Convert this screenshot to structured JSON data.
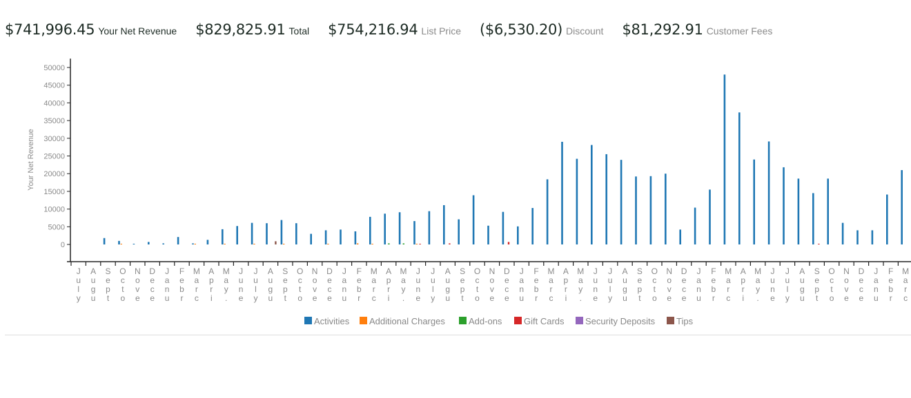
{
  "summary": [
    {
      "value": "$741,996.45",
      "label": "Your Net Revenue"
    },
    {
      "value": "$829,825.91",
      "label": "Total"
    },
    {
      "value": "$754,216.94",
      "label": "List Price"
    },
    {
      "value": "($6,530.20)",
      "label": "Discount"
    },
    {
      "value": "$81,292.91",
      "label": "Customer Fees"
    }
  ],
  "chart_data": {
    "type": "bar",
    "title": "",
    "xlabel": "",
    "ylabel": "Your Net Revenue",
    "ylim": [
      -5000,
      52500
    ],
    "yticks": [
      0,
      5000,
      10000,
      15000,
      20000,
      25000,
      30000,
      35000,
      40000,
      45000,
      50000
    ],
    "grid": false,
    "legend_position": "bottom-center",
    "categories": [
      "July",
      "Augu",
      "Sept",
      "Octo",
      "Nove",
      "Dece",
      "Janu",
      "Febr",
      "Marc",
      "Apri",
      "May.",
      "June",
      "July",
      "Augu",
      "Sept",
      "Octo",
      "Nove",
      "Dece",
      "Janu",
      "Febr",
      "Marc",
      "Apri",
      "May.",
      "June",
      "July",
      "Augu",
      "Sept",
      "Octo",
      "Nove",
      "Dece",
      "Janu",
      "Febr",
      "Marc",
      "Apri",
      "May.",
      "June",
      "July",
      "Augu",
      "Sept",
      "Octo",
      "Nove",
      "Dece",
      "Janu",
      "Febr",
      "Marc",
      "Apri",
      "May.",
      "June",
      "July",
      "Augu",
      "Sept",
      "Octo",
      "Nove",
      "Dece",
      "Janu",
      "Febr",
      "Marc"
    ],
    "series": [
      {
        "name": "Activities",
        "color": "#1f77b4",
        "values": [
          0,
          0,
          1800,
          1000,
          200,
          700,
          300,
          2100,
          300,
          1300,
          4300,
          5200,
          6100,
          6000,
          6900,
          6000,
          3000,
          4000,
          4200,
          3700,
          7800,
          8700,
          9100,
          6600,
          9400,
          11100,
          7100,
          13900,
          5300,
          9200,
          5100,
          10300,
          18400,
          29000,
          24200,
          28100,
          25500,
          23900,
          19200,
          19300,
          20000,
          4200,
          10400,
          15500,
          48000,
          37300,
          24000,
          29100,
          21800,
          18600,
          14500,
          18600,
          6100,
          4000,
          4000,
          14100,
          21000
        ]
      },
      {
        "name": "Additional Charges",
        "color": "#ff7f0e",
        "values": [
          0,
          0,
          0,
          200,
          0,
          0,
          0,
          0,
          200,
          0,
          200,
          0,
          200,
          0,
          200,
          0,
          0,
          200,
          0,
          300,
          200,
          0,
          0,
          200,
          0,
          0,
          0,
          0,
          0,
          0,
          0,
          0,
          0,
          0,
          0,
          0,
          0,
          0,
          0,
          0,
          0,
          0,
          0,
          0,
          0,
          0,
          0,
          0,
          0,
          0,
          0,
          0,
          0,
          0,
          0,
          0,
          0
        ]
      },
      {
        "name": "Add-ons",
        "color": "#2ca02c",
        "values": [
          0,
          0,
          0,
          0,
          0,
          0,
          0,
          0,
          0,
          0,
          0,
          0,
          0,
          0,
          0,
          0,
          0,
          0,
          0,
          0,
          0,
          300,
          300,
          0,
          0,
          0,
          0,
          0,
          0,
          0,
          0,
          0,
          0,
          0,
          0,
          0,
          0,
          0,
          0,
          0,
          0,
          0,
          0,
          0,
          0,
          0,
          0,
          0,
          0,
          0,
          0,
          0,
          0,
          0,
          0,
          0,
          0
        ]
      },
      {
        "name": "Gift Cards",
        "color": "#d62728",
        "values": [
          0,
          0,
          0,
          0,
          0,
          0,
          0,
          0,
          0,
          0,
          0,
          0,
          0,
          0,
          0,
          0,
          0,
          0,
          0,
          0,
          0,
          0,
          0,
          200,
          0,
          300,
          0,
          0,
          0,
          700,
          0,
          0,
          0,
          0,
          0,
          0,
          0,
          0,
          0,
          0,
          0,
          0,
          0,
          0,
          0,
          0,
          0,
          0,
          0,
          0,
          200,
          0,
          0,
          0,
          0,
          0,
          0
        ]
      },
      {
        "name": "Security Deposits",
        "color": "#9467bd",
        "values": [
          0,
          0,
          0,
          0,
          0,
          0,
          0,
          0,
          0,
          0,
          0,
          0,
          0,
          0,
          0,
          0,
          0,
          0,
          0,
          0,
          0,
          0,
          0,
          0,
          0,
          0,
          0,
          0,
          0,
          0,
          0,
          0,
          0,
          0,
          0,
          0,
          0,
          0,
          0,
          0,
          0,
          0,
          0,
          0,
          0,
          0,
          0,
          0,
          0,
          0,
          0,
          0,
          0,
          0,
          0,
          0,
          0
        ]
      },
      {
        "name": "Tips",
        "color": "#8c564b",
        "values": [
          0,
          0,
          0,
          0,
          0,
          0,
          0,
          0,
          0,
          0,
          0,
          0,
          0,
          900,
          0,
          0,
          0,
          0,
          0,
          0,
          0,
          0,
          0,
          0,
          0,
          0,
          0,
          0,
          0,
          0,
          0,
          0,
          0,
          0,
          0,
          0,
          0,
          0,
          0,
          0,
          0,
          0,
          0,
          0,
          0,
          0,
          0,
          0,
          0,
          0,
          0,
          0,
          0,
          0,
          0,
          0,
          0
        ]
      }
    ]
  }
}
